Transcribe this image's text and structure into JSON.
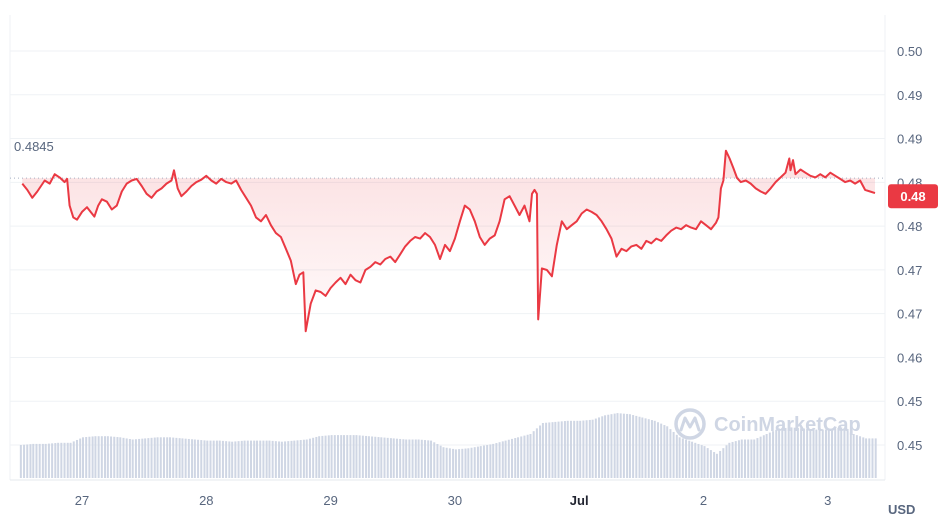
{
  "chart_data": {
    "type": "line",
    "currency": "USD",
    "y_ticks": [
      "0.50",
      "0.49",
      "0.49",
      "0.48",
      "0.48",
      "0.47",
      "0.47",
      "0.46",
      "0.45",
      "0.45"
    ],
    "ylim": [
      0.4505,
      0.5007
    ],
    "x_ticks": [
      {
        "label": "27",
        "day": 27,
        "bold": false
      },
      {
        "label": "28",
        "day": 28,
        "bold": false
      },
      {
        "label": "29",
        "day": 29,
        "bold": false
      },
      {
        "label": "30",
        "day": 30,
        "bold": false
      },
      {
        "label": "Jul",
        "day": 31,
        "bold": true
      },
      {
        "label": "2",
        "day": 32,
        "bold": false
      },
      {
        "label": "3",
        "day": 33,
        "bold": false
      }
    ],
    "reference_price": "0.4845",
    "reference_value": 0.4845,
    "current_price": "0.48",
    "current_value": 0.4822,
    "price_series": [
      [
        26.52,
        0.4838
      ],
      [
        26.56,
        0.483
      ],
      [
        26.6,
        0.482
      ],
      [
        26.64,
        0.4828
      ],
      [
        26.7,
        0.4842
      ],
      [
        26.74,
        0.4838
      ],
      [
        26.78,
        0.485
      ],
      [
        26.82,
        0.4846
      ],
      [
        26.86,
        0.484
      ],
      [
        26.88,
        0.4844
      ],
      [
        26.9,
        0.481
      ],
      [
        26.93,
        0.4795
      ],
      [
        26.96,
        0.4792
      ],
      [
        27.0,
        0.4802
      ],
      [
        27.04,
        0.4808
      ],
      [
        27.08,
        0.48
      ],
      [
        27.1,
        0.4796
      ],
      [
        27.13,
        0.481
      ],
      [
        27.16,
        0.4818
      ],
      [
        27.2,
        0.4815
      ],
      [
        27.24,
        0.4805
      ],
      [
        27.28,
        0.481
      ],
      [
        27.32,
        0.4828
      ],
      [
        27.36,
        0.4838
      ],
      [
        27.4,
        0.4842
      ],
      [
        27.44,
        0.4844
      ],
      [
        27.48,
        0.4835
      ],
      [
        27.52,
        0.4825
      ],
      [
        27.56,
        0.482
      ],
      [
        27.6,
        0.4828
      ],
      [
        27.64,
        0.4832
      ],
      [
        27.68,
        0.4838
      ],
      [
        27.72,
        0.4842
      ],
      [
        27.74,
        0.4855
      ],
      [
        27.77,
        0.4832
      ],
      [
        27.8,
        0.4822
      ],
      [
        27.84,
        0.4828
      ],
      [
        27.88,
        0.4835
      ],
      [
        27.92,
        0.484
      ],
      [
        27.96,
        0.4843
      ],
      [
        28.0,
        0.4848
      ],
      [
        28.04,
        0.4842
      ],
      [
        28.08,
        0.4838
      ],
      [
        28.12,
        0.4844
      ],
      [
        28.16,
        0.484
      ],
      [
        28.2,
        0.4838
      ],
      [
        28.24,
        0.4842
      ],
      [
        28.28,
        0.483
      ],
      [
        28.32,
        0.482
      ],
      [
        28.36,
        0.481
      ],
      [
        28.4,
        0.4795
      ],
      [
        28.44,
        0.479
      ],
      [
        28.48,
        0.4798
      ],
      [
        28.52,
        0.4785
      ],
      [
        28.56,
        0.4775
      ],
      [
        28.6,
        0.477
      ],
      [
        28.64,
        0.4755
      ],
      [
        28.68,
        0.474
      ],
      [
        28.72,
        0.471
      ],
      [
        28.75,
        0.4722
      ],
      [
        28.78,
        0.4725
      ],
      [
        28.8,
        0.465
      ],
      [
        28.84,
        0.4685
      ],
      [
        28.88,
        0.4702
      ],
      [
        28.92,
        0.47
      ],
      [
        28.96,
        0.4695
      ],
      [
        29.0,
        0.4705
      ],
      [
        29.04,
        0.4712
      ],
      [
        29.08,
        0.4718
      ],
      [
        29.12,
        0.471
      ],
      [
        29.16,
        0.4722
      ],
      [
        29.2,
        0.4715
      ],
      [
        29.24,
        0.4712
      ],
      [
        29.28,
        0.4728
      ],
      [
        29.32,
        0.4732
      ],
      [
        29.36,
        0.4738
      ],
      [
        29.4,
        0.4735
      ],
      [
        29.44,
        0.4742
      ],
      [
        29.48,
        0.4745
      ],
      [
        29.52,
        0.4738
      ],
      [
        29.56,
        0.4748
      ],
      [
        29.6,
        0.4758
      ],
      [
        29.64,
        0.4765
      ],
      [
        29.68,
        0.477
      ],
      [
        29.72,
        0.4768
      ],
      [
        29.76,
        0.4775
      ],
      [
        29.8,
        0.477
      ],
      [
        29.84,
        0.476
      ],
      [
        29.88,
        0.4742
      ],
      [
        29.92,
        0.476
      ],
      [
        29.96,
        0.4752
      ],
      [
        30.0,
        0.4768
      ],
      [
        30.04,
        0.479
      ],
      [
        30.08,
        0.481
      ],
      [
        30.12,
        0.4805
      ],
      [
        30.16,
        0.479
      ],
      [
        30.2,
        0.477
      ],
      [
        30.24,
        0.476
      ],
      [
        30.28,
        0.4768
      ],
      [
        30.32,
        0.4772
      ],
      [
        30.36,
        0.479
      ],
      [
        30.4,
        0.4818
      ],
      [
        30.44,
        0.4822
      ],
      [
        30.48,
        0.481
      ],
      [
        30.52,
        0.4798
      ],
      [
        30.56,
        0.481
      ],
      [
        30.6,
        0.479
      ],
      [
        30.62,
        0.4825
      ],
      [
        30.64,
        0.483
      ],
      [
        30.66,
        0.4825
      ],
      [
        30.67,
        0.4665
      ],
      [
        30.7,
        0.473
      ],
      [
        30.74,
        0.4728
      ],
      [
        30.78,
        0.472
      ],
      [
        30.82,
        0.476
      ],
      [
        30.86,
        0.479
      ],
      [
        30.9,
        0.478
      ],
      [
        30.94,
        0.4785
      ],
      [
        30.98,
        0.479
      ],
      [
        31.02,
        0.48
      ],
      [
        31.06,
        0.4805
      ],
      [
        31.1,
        0.4802
      ],
      [
        31.14,
        0.4798
      ],
      [
        31.18,
        0.479
      ],
      [
        31.22,
        0.478
      ],
      [
        31.26,
        0.4768
      ],
      [
        31.3,
        0.4745
      ],
      [
        31.34,
        0.4755
      ],
      [
        31.38,
        0.4752
      ],
      [
        31.42,
        0.4758
      ],
      [
        31.46,
        0.476
      ],
      [
        31.5,
        0.4755
      ],
      [
        31.54,
        0.4765
      ],
      [
        31.58,
        0.4762
      ],
      [
        31.62,
        0.4768
      ],
      [
        31.66,
        0.4765
      ],
      [
        31.7,
        0.4772
      ],
      [
        31.74,
        0.4778
      ],
      [
        31.78,
        0.4782
      ],
      [
        31.82,
        0.478
      ],
      [
        31.86,
        0.4785
      ],
      [
        31.9,
        0.4782
      ],
      [
        31.94,
        0.478
      ],
      [
        31.98,
        0.479
      ],
      [
        32.02,
        0.4785
      ],
      [
        32.06,
        0.478
      ],
      [
        32.1,
        0.4788
      ],
      [
        32.12,
        0.4795
      ],
      [
        32.14,
        0.4832
      ],
      [
        32.16,
        0.4842
      ],
      [
        32.18,
        0.488
      ],
      [
        32.21,
        0.487
      ],
      [
        32.24,
        0.4858
      ],
      [
        32.27,
        0.4845
      ],
      [
        32.3,
        0.484
      ],
      [
        32.34,
        0.4842
      ],
      [
        32.38,
        0.4838
      ],
      [
        32.42,
        0.4832
      ],
      [
        32.46,
        0.4828
      ],
      [
        32.5,
        0.4825
      ],
      [
        32.54,
        0.4832
      ],
      [
        32.58,
        0.484
      ],
      [
        32.62,
        0.4846
      ],
      [
        32.66,
        0.4852
      ],
      [
        32.69,
        0.487
      ],
      [
        32.7,
        0.4855
      ],
      [
        32.72,
        0.4868
      ],
      [
        32.74,
        0.485
      ],
      [
        32.78,
        0.4856
      ],
      [
        32.82,
        0.4852
      ],
      [
        32.86,
        0.4848
      ],
      [
        32.9,
        0.4846
      ],
      [
        32.94,
        0.485
      ],
      [
        32.98,
        0.4846
      ],
      [
        33.02,
        0.4852
      ],
      [
        33.06,
        0.4848
      ],
      [
        33.1,
        0.4844
      ],
      [
        33.14,
        0.484
      ],
      [
        33.18,
        0.4842
      ],
      [
        33.22,
        0.4838
      ],
      [
        33.26,
        0.4842
      ],
      [
        33.3,
        0.483
      ],
      [
        33.34,
        0.4828
      ],
      [
        33.38,
        0.4826
      ]
    ],
    "volume_bars": [
      [
        26.5,
        0.3
      ],
      [
        26.6,
        0.31
      ],
      [
        26.7,
        0.31
      ],
      [
        26.8,
        0.32
      ],
      [
        26.9,
        0.32
      ],
      [
        27.0,
        0.37
      ],
      [
        27.1,
        0.38
      ],
      [
        27.2,
        0.38
      ],
      [
        27.3,
        0.37
      ],
      [
        27.4,
        0.35
      ],
      [
        27.5,
        0.36
      ],
      [
        27.6,
        0.37
      ],
      [
        27.7,
        0.37
      ],
      [
        27.8,
        0.36
      ],
      [
        27.9,
        0.35
      ],
      [
        28.0,
        0.34
      ],
      [
        28.1,
        0.34
      ],
      [
        28.2,
        0.33
      ],
      [
        28.3,
        0.34
      ],
      [
        28.4,
        0.34
      ],
      [
        28.5,
        0.34
      ],
      [
        28.6,
        0.33
      ],
      [
        28.7,
        0.34
      ],
      [
        28.8,
        0.35
      ],
      [
        28.9,
        0.38
      ],
      [
        29.0,
        0.39
      ],
      [
        29.1,
        0.39
      ],
      [
        29.2,
        0.39
      ],
      [
        29.3,
        0.38
      ],
      [
        29.4,
        0.37
      ],
      [
        29.5,
        0.36
      ],
      [
        29.6,
        0.35
      ],
      [
        29.7,
        0.35
      ],
      [
        29.8,
        0.34
      ],
      [
        29.9,
        0.28
      ],
      [
        30.0,
        0.26
      ],
      [
        30.1,
        0.27
      ],
      [
        30.2,
        0.29
      ],
      [
        30.3,
        0.31
      ],
      [
        30.4,
        0.34
      ],
      [
        30.5,
        0.37
      ],
      [
        30.6,
        0.4
      ],
      [
        30.7,
        0.5
      ],
      [
        30.8,
        0.51
      ],
      [
        30.9,
        0.52
      ],
      [
        31.0,
        0.52
      ],
      [
        31.1,
        0.53
      ],
      [
        31.2,
        0.57
      ],
      [
        31.3,
        0.59
      ],
      [
        31.4,
        0.58
      ],
      [
        31.5,
        0.55
      ],
      [
        31.6,
        0.52
      ],
      [
        31.7,
        0.47
      ],
      [
        31.8,
        0.37
      ],
      [
        31.9,
        0.33
      ],
      [
        32.0,
        0.29
      ],
      [
        32.1,
        0.22
      ],
      [
        32.2,
        0.32
      ],
      [
        32.3,
        0.35
      ],
      [
        32.4,
        0.35
      ],
      [
        32.5,
        0.4
      ],
      [
        32.6,
        0.45
      ],
      [
        32.7,
        0.46
      ],
      [
        32.8,
        0.45
      ],
      [
        32.9,
        0.44
      ],
      [
        33.0,
        0.44
      ],
      [
        33.1,
        0.46
      ],
      [
        33.2,
        0.4
      ],
      [
        33.3,
        0.36
      ],
      [
        33.4,
        0.36
      ]
    ],
    "colors": {
      "down": "#ea3943",
      "up": "#16c784",
      "down_fill": "#ea3943",
      "volume": "#cfd6e4",
      "grid": "#eff2f5",
      "badge": "#ea3943"
    }
  },
  "watermark": {
    "text": "CoinMarketCap",
    "icon": "coinmarketcap-logo-icon"
  }
}
